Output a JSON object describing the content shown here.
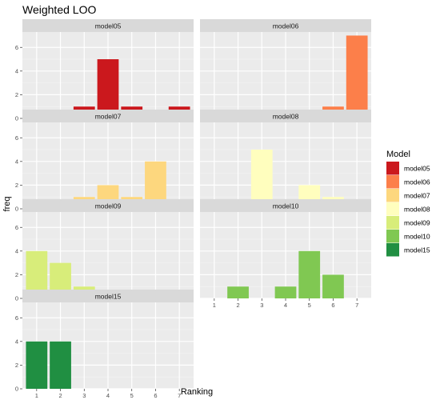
{
  "chart_data": {
    "type": "bar",
    "title": "Weighted LOO",
    "xlabel": "Ranking",
    "ylabel": "freq",
    "x_categories": [
      "1",
      "2",
      "3",
      "4",
      "5",
      "6",
      "7"
    ],
    "y_ticks": [
      0,
      2,
      4,
      6
    ],
    "ylim": [
      0,
      7.3
    ],
    "legend": {
      "title": "Model",
      "placement": "right"
    },
    "panels": [
      {
        "name": "model05",
        "color": "#CB181D",
        "values": [
          0,
          0,
          1,
          5,
          1,
          0,
          1
        ]
      },
      {
        "name": "model06",
        "color": "#FC7F4A",
        "values": [
          0,
          0,
          0,
          0,
          0,
          1,
          7
        ]
      },
      {
        "name": "model07",
        "color": "#FDD77E",
        "values": [
          0,
          0,
          1,
          2,
          1,
          4,
          0
        ]
      },
      {
        "name": "model08",
        "color": "#FFFEBE",
        "values": [
          0,
          0,
          5,
          0,
          2,
          1,
          0
        ]
      },
      {
        "name": "model09",
        "color": "#D8ED7A",
        "values": [
          4,
          3,
          1,
          0,
          0,
          0,
          0
        ]
      },
      {
        "name": "model10",
        "color": "#80C852",
        "values": [
          0,
          1,
          0,
          1,
          4,
          2,
          0
        ]
      },
      {
        "name": "model15",
        "color": "#208F42",
        "values": [
          4,
          4,
          0,
          0,
          0,
          0,
          0
        ]
      }
    ]
  }
}
